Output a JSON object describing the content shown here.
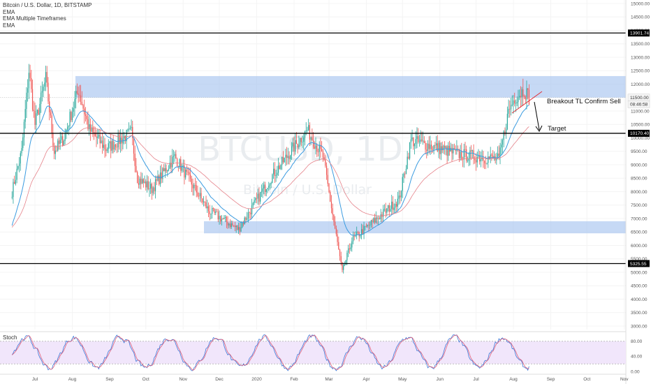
{
  "legend": {
    "symbol": "Bitcoin / U.S. Dollar, 1D, BITSTAMP",
    "ind1": "EMA",
    "ind2": "EMA Multiple Timeframes",
    "ind3": "EMA"
  },
  "watermark": {
    "big": "BTCUSD, 1D",
    "small": "Bitcoin / U.S. Dollar"
  },
  "annotations": {
    "breakout": "Breakout TL Confirm Sell",
    "target": "Target"
  },
  "price_tags": {
    "top_line": "13901.74",
    "current": "11500.00",
    "countdown": "08:46:58",
    "mid_line": "10170.40",
    "low_line": "5325.55"
  },
  "stoch_label": "Stoch",
  "colors": {
    "up": "#26a69a",
    "down": "#ef5350",
    "ema_fast": "#3a9be0",
    "ema_slow": "#e5828a",
    "zone": "#a8c4f0",
    "stoch_k": "#3d78d8",
    "stoch_d": "#e0607a",
    "stoch_bg": "#f1e6fb"
  },
  "chart_data": {
    "type": "candlestick",
    "y_ticks": [
      "15000.00",
      "14500.00",
      "14000.00",
      "13500.00",
      "13000.00",
      "12500.00",
      "12000.00",
      "11000.00",
      "10500.00",
      "10000.00",
      "9500.00",
      "9000.00",
      "8500.00",
      "8000.00",
      "7500.00",
      "7000.00",
      "6500.00",
      "6000.00",
      "5500.00",
      "5000.00",
      "4500.00",
      "4000.00",
      "3500.00",
      "3000.00"
    ],
    "x_ticks": [
      "Jul",
      "Aug",
      "Sep",
      "Oct",
      "Nov",
      "Dec",
      "2020",
      "Feb",
      "Mar",
      "Apr",
      "May",
      "Jun",
      "Jul",
      "Aug",
      "Sep",
      "Oct",
      "Nov"
    ],
    "ylim": [
      3000,
      15000
    ],
    "horizontal_levels": [
      13901.74,
      10170.4,
      5325.55
    ],
    "resistance_zone": [
      11500,
      12300
    ],
    "support_zone": [
      6450,
      6900
    ],
    "price_path": [
      [
        "Jun 12",
        8000
      ],
      [
        "Jun 20",
        9500
      ],
      [
        "Jun 26",
        12500
      ],
      [
        "Jul 1",
        10500
      ],
      [
        "Jul 10",
        12200
      ],
      [
        "Jul 17",
        9500
      ],
      [
        "Jul 25",
        10000
      ],
      [
        "Aug 6",
        11800
      ],
      [
        "Aug 15",
        10300
      ],
      [
        "Aug 29",
        9600
      ],
      [
        "Sep 19",
        10200
      ],
      [
        "Sep 24",
        8500
      ],
      [
        "Oct 6",
        8100
      ],
      [
        "Oct 25",
        9300
      ],
      [
        "Nov 22",
        7300
      ],
      [
        "Dec 17",
        6600
      ],
      [
        "Jan 14",
        8600
      ],
      [
        "Feb 12",
        10300
      ],
      [
        "Feb 25",
        9300
      ],
      [
        "Mar 12",
        5000
      ],
      [
        "Mar 20",
        6200
      ],
      [
        "Apr 28",
        7700
      ],
      [
        "May 8",
        9900
      ],
      [
        "Jun 2",
        9600
      ],
      [
        "Jun 15",
        9400
      ],
      [
        "Jul 20",
        9200
      ],
      [
        "Jul 28",
        11000
      ],
      [
        "Aug 2",
        11500
      ],
      [
        "Aug 10",
        11800
      ],
      [
        "Aug 14",
        11500
      ]
    ],
    "stoch_ylim": [
      0,
      100
    ],
    "stoch_levels": [
      80,
      20
    ],
    "stoch_ticks": [
      "80.00",
      "40.00",
      "0.00"
    ]
  }
}
